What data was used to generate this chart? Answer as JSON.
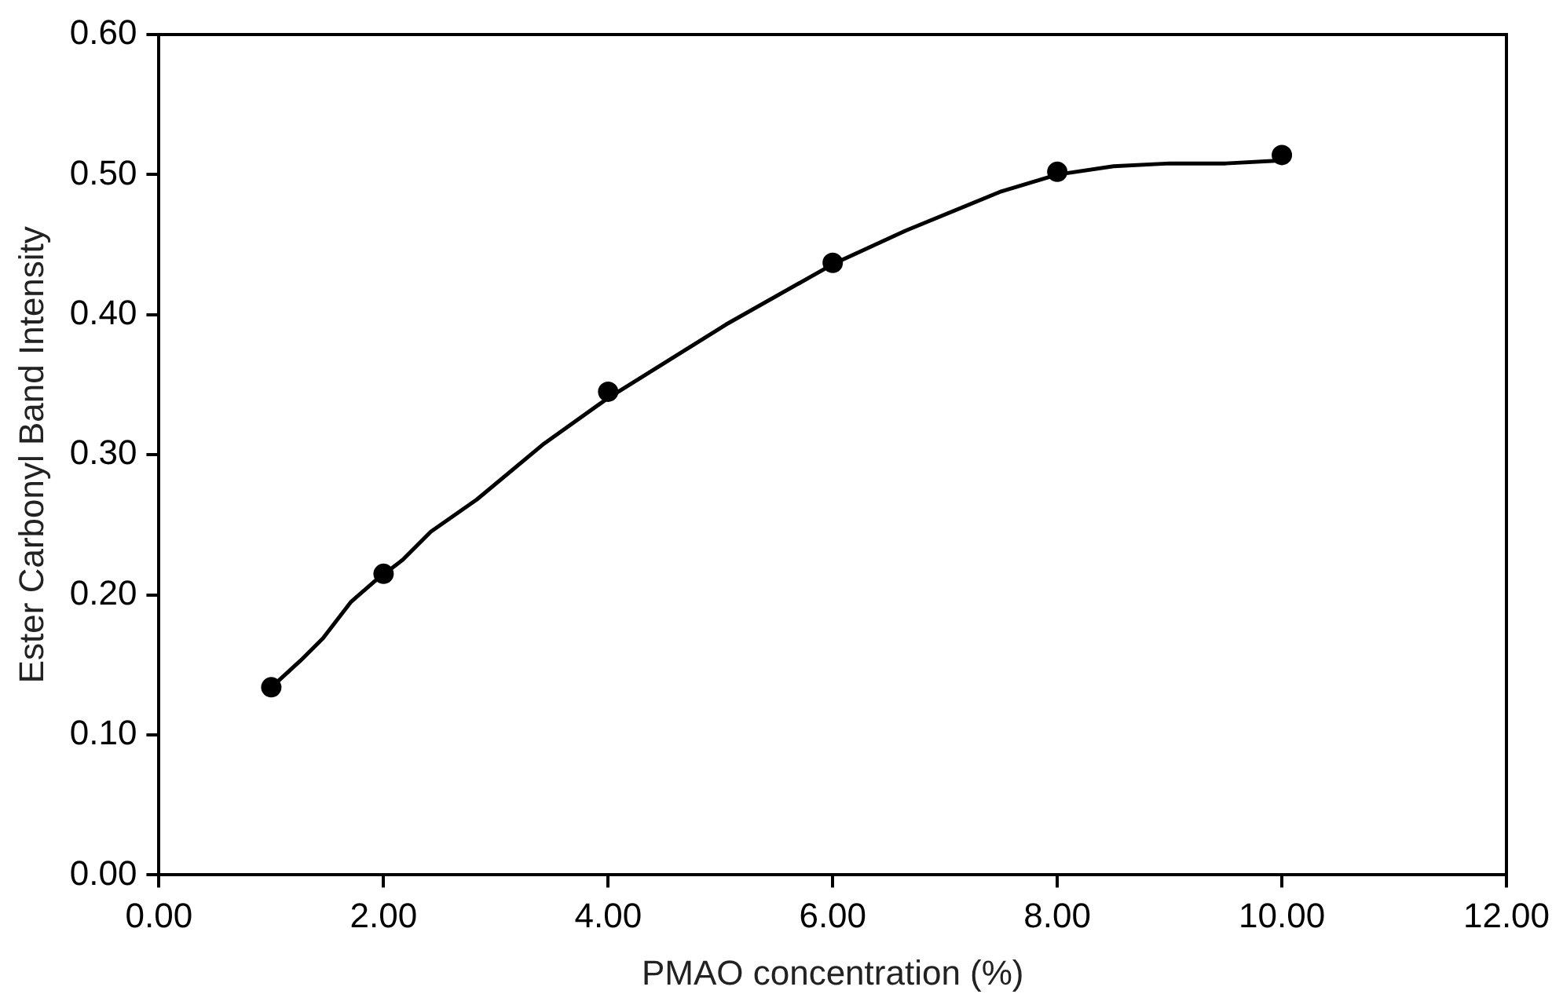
{
  "chart_data": {
    "type": "scatter",
    "xlabel": "PMAO concentration (%)",
    "ylabel": "Ester Carbonyl Band Intensity",
    "xlim": [
      0,
      12
    ],
    "ylim": [
      0,
      0.6
    ],
    "xticks": [
      {
        "value": 0,
        "label": "0.00"
      },
      {
        "value": 2,
        "label": "2.00"
      },
      {
        "value": 4,
        "label": "4.00"
      },
      {
        "value": 6,
        "label": "6.00"
      },
      {
        "value": 8,
        "label": "8.00"
      },
      {
        "value": 10,
        "label": "10.00"
      },
      {
        "value": 12,
        "label": "12.00"
      }
    ],
    "yticks": [
      {
        "value": 0,
        "label": "0.00"
      },
      {
        "value": 0.1,
        "label": "0.10"
      },
      {
        "value": 0.2,
        "label": "0.20"
      },
      {
        "value": 0.3,
        "label": "0.30"
      },
      {
        "value": 0.4,
        "label": "0.40"
      },
      {
        "value": 0.5,
        "label": "0.50"
      },
      {
        "value": 0.6,
        "label": "0.60"
      }
    ],
    "grid": false,
    "legend": false,
    "series": [
      {
        "color": "#000000",
        "marker": "circle",
        "x": [
          1,
          2,
          4,
          6,
          8,
          10
        ],
        "values": [
          0.134,
          0.215,
          0.345,
          0.437,
          0.502,
          0.514
        ]
      },
      {
        "type": "line",
        "color": "#000000",
        "marker": "none",
        "line_style": "solid",
        "x": [
          1.0,
          1.26,
          1.46,
          1.71,
          1.91,
          2.17,
          2.42,
          2.83,
          3.43,
          3.99,
          5.05,
          6.0,
          6.65,
          7.5,
          8.0,
          8.5,
          9.0,
          9.5,
          9.98
        ],
        "values": [
          0.134,
          0.153,
          0.169,
          0.195,
          0.209,
          0.225,
          0.245,
          0.268,
          0.308,
          0.34,
          0.393,
          0.436,
          0.46,
          0.488,
          0.5,
          0.506,
          0.508,
          0.508,
          0.51
        ]
      }
    ]
  }
}
